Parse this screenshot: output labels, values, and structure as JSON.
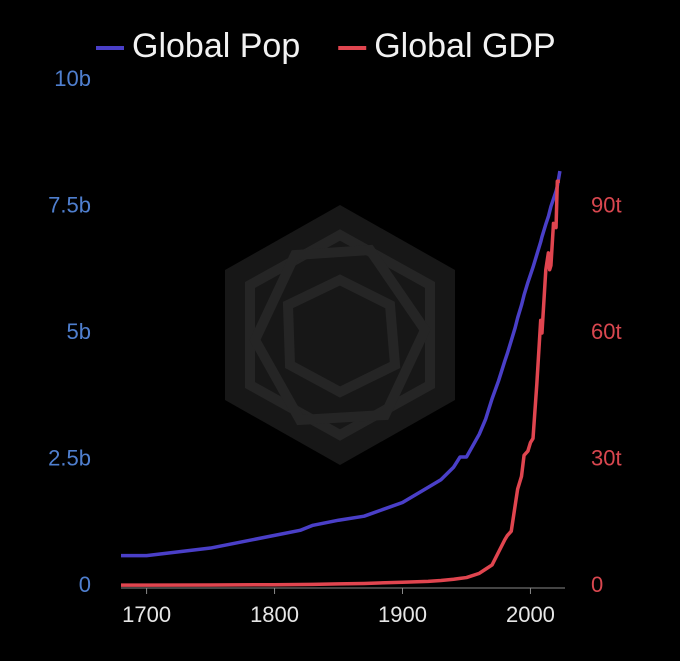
{
  "chart_data": {
    "type": "line",
    "x": [
      1680,
      1700,
      1750,
      1800,
      1820,
      1830,
      1850,
      1870,
      1900,
      1920,
      1930,
      1940,
      1945,
      1950,
      1960,
      1965,
      1970,
      1975,
      1980,
      1982,
      1985,
      1988,
      1990,
      1993,
      1995,
      1998,
      2000,
      2002,
      2005,
      2008,
      2009,
      2012,
      2014,
      2015,
      2016,
      2018,
      2020,
      2021,
      2023
    ],
    "series": [
      {
        "name": "Global Pop",
        "color": "#4a3fc8",
        "axis": "y",
        "values": [
          0.6,
          0.6,
          0.75,
          1.0,
          1.1,
          1.2,
          1.3,
          1.38,
          1.65,
          1.95,
          2.1,
          2.35,
          2.55,
          2.55,
          3.0,
          3.3,
          3.7,
          4.05,
          4.45,
          4.6,
          4.85,
          5.1,
          5.3,
          5.55,
          5.75,
          6.0,
          6.15,
          6.3,
          6.55,
          6.8,
          6.9,
          7.15,
          7.3,
          7.4,
          7.5,
          7.65,
          7.8,
          7.9,
          8.2
        ]
      },
      {
        "name": "Global GDP",
        "color": "#e0454f",
        "axis": "y2",
        "values": [
          0.2,
          0.2,
          0.25,
          0.3,
          0.35,
          0.4,
          0.5,
          0.6,
          0.9,
          1.1,
          1.3,
          1.6,
          1.8,
          2,
          3,
          4,
          5,
          8,
          11,
          12,
          13,
          19,
          23,
          26,
          31,
          32,
          34,
          35,
          48,
          63,
          60,
          75,
          79,
          75,
          76,
          86,
          85,
          96,
          96
        ]
      }
    ],
    "xlim": [
      1680,
      2027
    ],
    "xticks": [
      1700,
      1800,
      1900,
      2000
    ],
    "ylim": [
      0,
      10
    ],
    "yticks": [
      0,
      {
        "value": 2.5,
        "label": "2.5b"
      },
      {
        "value": 5,
        "label": "5b"
      },
      {
        "value": 7.5,
        "label": "7.5b"
      },
      {
        "value": 10,
        "label": "10b"
      }
    ],
    "y2lim": [
      0,
      120
    ],
    "y2ticks": [
      0,
      {
        "value": 30,
        "label": "30t"
      },
      {
        "value": 60,
        "label": "60t"
      },
      {
        "value": 90,
        "label": "90t"
      }
    ],
    "ytick_color": "#4f7fcf",
    "y2tick_color": "#d9474f"
  }
}
